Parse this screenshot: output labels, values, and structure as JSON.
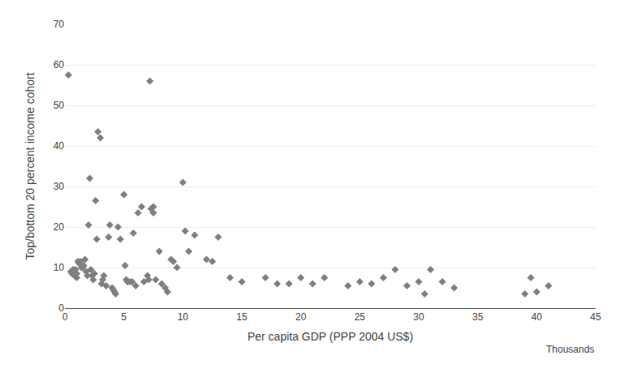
{
  "chart_data": {
    "type": "scatter",
    "xlabel": "Per capita GDP (PPP 2004 US$)",
    "ylabel": "Top/bottom 20 percent income cohort",
    "annotations": [
      "Thousands"
    ],
    "x": [
      0.3,
      0.5,
      0.6,
      0.7,
      0.8,
      0.9,
      1.0,
      1.0,
      1.1,
      1.2,
      1.3,
      1.4,
      1.5,
      1.6,
      1.7,
      1.8,
      1.9,
      2.0,
      2.1,
      2.2,
      2.3,
      2.4,
      2.5,
      2.6,
      2.7,
      2.8,
      3.0,
      3.1,
      3.2,
      3.3,
      3.5,
      3.7,
      3.8,
      4.0,
      4.1,
      4.2,
      4.3,
      4.5,
      4.7,
      5.0,
      5.1,
      5.2,
      5.3,
      5.5,
      5.7,
      5.8,
      6.0,
      6.2,
      6.5,
      6.7,
      7.0,
      7.1,
      7.2,
      7.3,
      7.5,
      7.5,
      7.7,
      8.0,
      8.2,
      8.5,
      8.7,
      9.0,
      9.2,
      9.5,
      10.0,
      10.2,
      10.5,
      11.0,
      12.0,
      12.5,
      13.0,
      14.0,
      15.0,
      17.0,
      18.0,
      19.0,
      20.0,
      21.0,
      22.0,
      24.0,
      25.0,
      26.0,
      27.0,
      28.0,
      29.0,
      30.0,
      30.5,
      31.0,
      32.0,
      33.0,
      39.0,
      39.5,
      40.0,
      41.0
    ],
    "values": [
      57.5,
      9.0,
      8.5,
      9.5,
      8.0,
      9.5,
      7.5,
      8.5,
      11.5,
      11.0,
      11.5,
      10.0,
      10.0,
      10.5,
      12.0,
      9.0,
      8.0,
      20.5,
      32.0,
      9.5,
      8.0,
      7.0,
      8.5,
      26.5,
      17.0,
      43.5,
      42.0,
      6.0,
      7.0,
      8.0,
      5.5,
      17.5,
      20.5,
      5.0,
      4.5,
      4.0,
      3.5,
      20.0,
      17.0,
      28.0,
      10.5,
      7.0,
      6.5,
      6.5,
      6.5,
      18.5,
      5.5,
      23.5,
      25.0,
      6.5,
      8.0,
      7.0,
      56.0,
      24.5,
      25.0,
      23.5,
      7.0,
      14.0,
      6.0,
      5.0,
      4.0,
      12.0,
      11.5,
      10.0,
      31.0,
      19.0,
      14.0,
      18.0,
      12.0,
      11.5,
      17.5,
      7.5,
      6.5,
      7.5,
      6.0,
      6.0,
      7.5,
      6.0,
      7.5,
      5.5,
      6.5,
      6.0,
      7.5,
      9.5,
      5.5,
      6.5,
      3.5,
      9.5,
      6.5,
      5.0,
      3.5,
      7.5,
      4.0,
      5.5
    ],
    "color": "#808080",
    "marker": "diamond",
    "xlim": [
      0,
      45
    ],
    "ylim": [
      0,
      70
    ],
    "xticks": [
      0,
      5,
      10,
      15,
      20,
      25,
      30,
      35,
      40,
      45
    ],
    "yticks": [
      0,
      10,
      20,
      30,
      40,
      50,
      60,
      70
    ],
    "grid": "y"
  }
}
